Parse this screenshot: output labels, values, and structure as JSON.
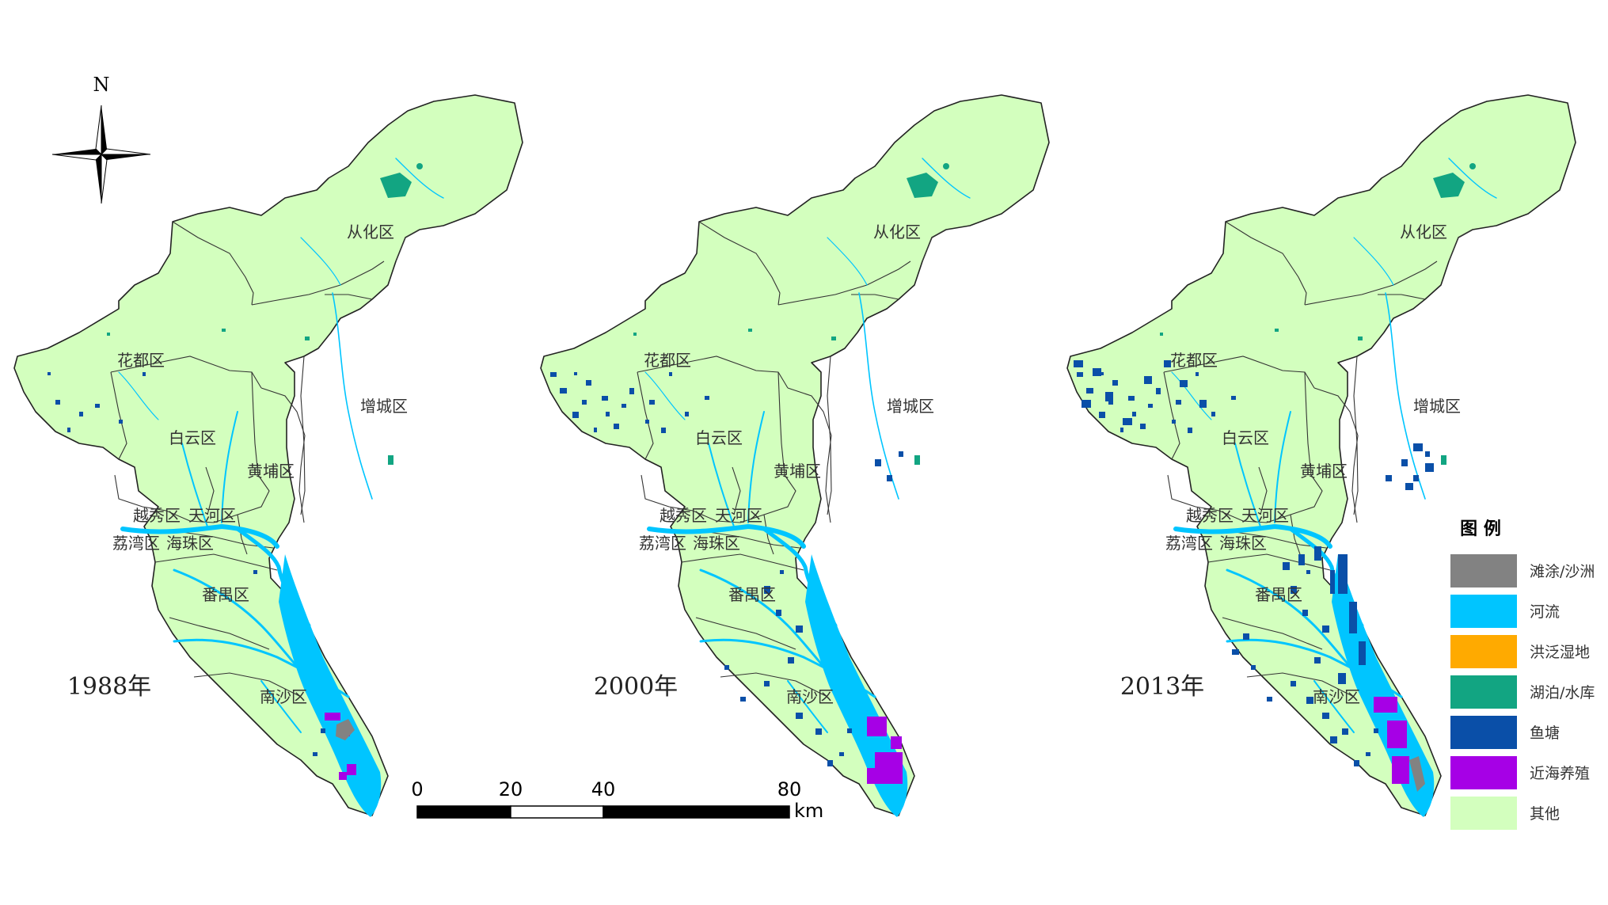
{
  "north_arrow": {
    "label": "N"
  },
  "maps": [
    {
      "year_label": "1988年"
    },
    {
      "year_label": "2000年"
    },
    {
      "year_label": "2013年"
    }
  ],
  "districts": [
    "从化区",
    "花都区",
    "增城区",
    "白云区",
    "黄埔区",
    "越秀区",
    "天河区",
    "荔湾区",
    "海珠区",
    "番禺区",
    "南沙区"
  ],
  "scale_bar": {
    "ticks": [
      "0",
      "20",
      "40",
      "80"
    ],
    "unit": "km"
  },
  "legend": {
    "title": "图 例",
    "items": [
      {
        "label": "滩涂/沙洲",
        "color": "#828282"
      },
      {
        "label": "河流",
        "color": "#00c5ff"
      },
      {
        "label": "洪泛湿地",
        "color": "#ffaa00"
      },
      {
        "label": "湖泊/水库",
        "color": "#12a582"
      },
      {
        "label": "鱼塘",
        "color": "#0a4fa8"
      },
      {
        "label": "近海养殖",
        "color": "#a600e6"
      },
      {
        "label": "其他",
        "color": "#d3ffbe"
      }
    ]
  },
  "colors": {
    "land": "#d3ffbe",
    "boundary": "#222222",
    "river": "#00c5ff",
    "pond": "#0a4fa8",
    "lake": "#12a582",
    "mariculture": "#a600e6",
    "mudflat": "#828282"
  }
}
